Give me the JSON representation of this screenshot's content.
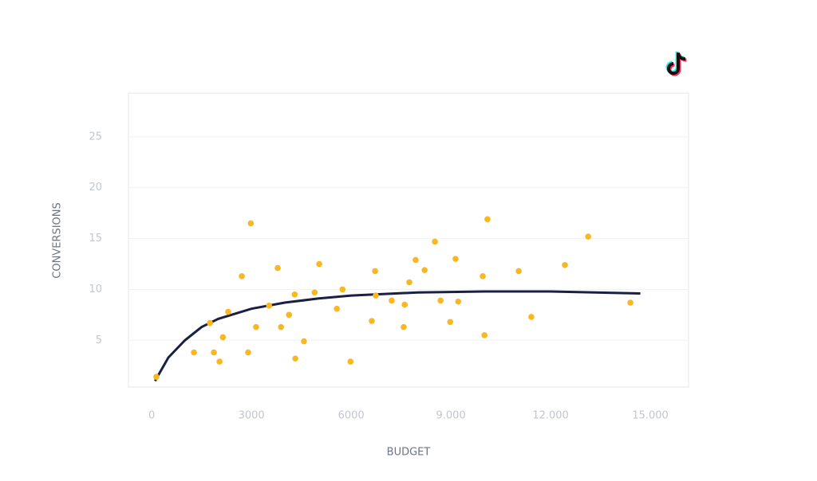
{
  "chart_data": {
    "type": "scatter",
    "x_label": "BUDGET",
    "y_label": "CONVERSIONS",
    "xlim": [
      -700,
      16150
    ],
    "ylim": [
      0.4,
      29.3
    ],
    "xticks": [
      0,
      3000,
      6000,
      {
        "value": 9000,
        "label": "9.000"
      },
      {
        "value": 12000,
        "label": "12.000"
      },
      {
        "value": 15000,
        "label": "15.000"
      }
    ],
    "yticks": [
      5,
      10,
      15,
      20,
      25
    ],
    "grid": true,
    "points": {
      "color": "#f9b823",
      "x": [
        140,
        1270,
        1750,
        1870,
        2040,
        2140,
        2300,
        2710,
        2900,
        2980,
        3140,
        3530,
        3790,
        3890,
        4130,
        4300,
        4320,
        4580,
        4900,
        5040,
        5570,
        5740,
        5980,
        6620,
        6720,
        6740,
        7220,
        7580,
        7610,
        7750,
        7940,
        8210,
        8520,
        8690,
        8980,
        9140,
        9220,
        9960,
        10010,
        10100,
        11040,
        11420,
        12430,
        13130,
        14400
      ],
      "y": [
        1.4,
        3.8,
        6.7,
        3.8,
        2.9,
        5.3,
        7.8,
        11.3,
        3.8,
        16.5,
        6.3,
        8.4,
        12.1,
        6.3,
        7.5,
        9.5,
        3.2,
        4.9,
        9.7,
        12.5,
        8.1,
        10.0,
        2.9,
        6.9,
        11.8,
        9.4,
        8.9,
        6.3,
        8.5,
        10.7,
        12.9,
        11.9,
        14.7,
        8.9,
        6.8,
        13.0,
        8.8,
        11.3,
        5.5,
        16.9,
        11.8,
        7.3,
        12.4,
        15.2,
        8.7
      ]
    },
    "fit": {
      "color": "#1b1f45",
      "x": [
        100,
        500,
        1000,
        1500,
        2000,
        3000,
        4000,
        5000,
        6000,
        8000,
        10000,
        12000,
        14700
      ],
      "y": [
        1.0,
        3.3,
        5.0,
        6.3,
        7.1,
        8.1,
        8.7,
        9.1,
        9.4,
        9.7,
        9.8,
        9.8,
        9.6
      ]
    }
  }
}
